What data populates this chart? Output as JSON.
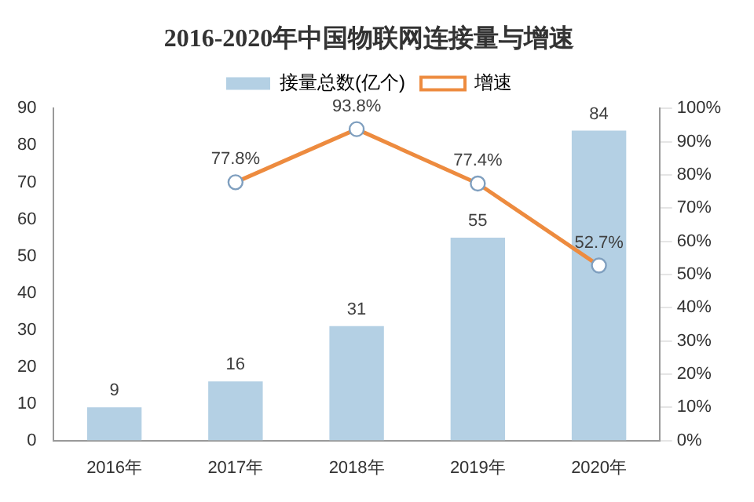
{
  "chart_data": {
    "type": "bar",
    "title": "2016-2020年中国物联网连接量与增速",
    "categories": [
      "2016年",
      "2017年",
      "2018年",
      "2019年",
      "2020年"
    ],
    "series": [
      {
        "name": "接量总数(亿个)",
        "color": "#b4d0e4",
        "values": [
          9,
          16,
          31,
          55,
          84
        ],
        "value_labels": [
          "9",
          "16",
          "31",
          "55",
          "84"
        ]
      },
      {
        "name": "增速",
        "type": "line",
        "axis": "y2",
        "color": "#ed8b3f",
        "values": [
          null,
          77.8,
          93.8,
          77.4,
          52.7
        ],
        "value_labels": [
          null,
          "77.8%",
          "93.8%",
          "77.4%",
          "52.7%"
        ]
      }
    ],
    "ylim": [
      0,
      90
    ],
    "yticks": [
      0,
      10,
      20,
      30,
      40,
      50,
      60,
      70,
      80,
      90
    ],
    "y2lim": [
      0,
      100
    ],
    "y2ticks": [
      {
        "value": 0,
        "label": "0%"
      },
      {
        "value": 10,
        "label": "10%"
      },
      {
        "value": 20,
        "label": "20%"
      },
      {
        "value": 30,
        "label": "30%"
      },
      {
        "value": 40,
        "label": "40%"
      },
      {
        "value": 50,
        "label": "50%"
      },
      {
        "value": 60,
        "label": "60%"
      },
      {
        "value": 70,
        "label": "70%"
      },
      {
        "value": 80,
        "label": "80%"
      },
      {
        "value": 90,
        "label": "90%"
      },
      {
        "value": 100,
        "label": "100%"
      }
    ],
    "legend": "top",
    "marker": "circle",
    "grid": false
  }
}
